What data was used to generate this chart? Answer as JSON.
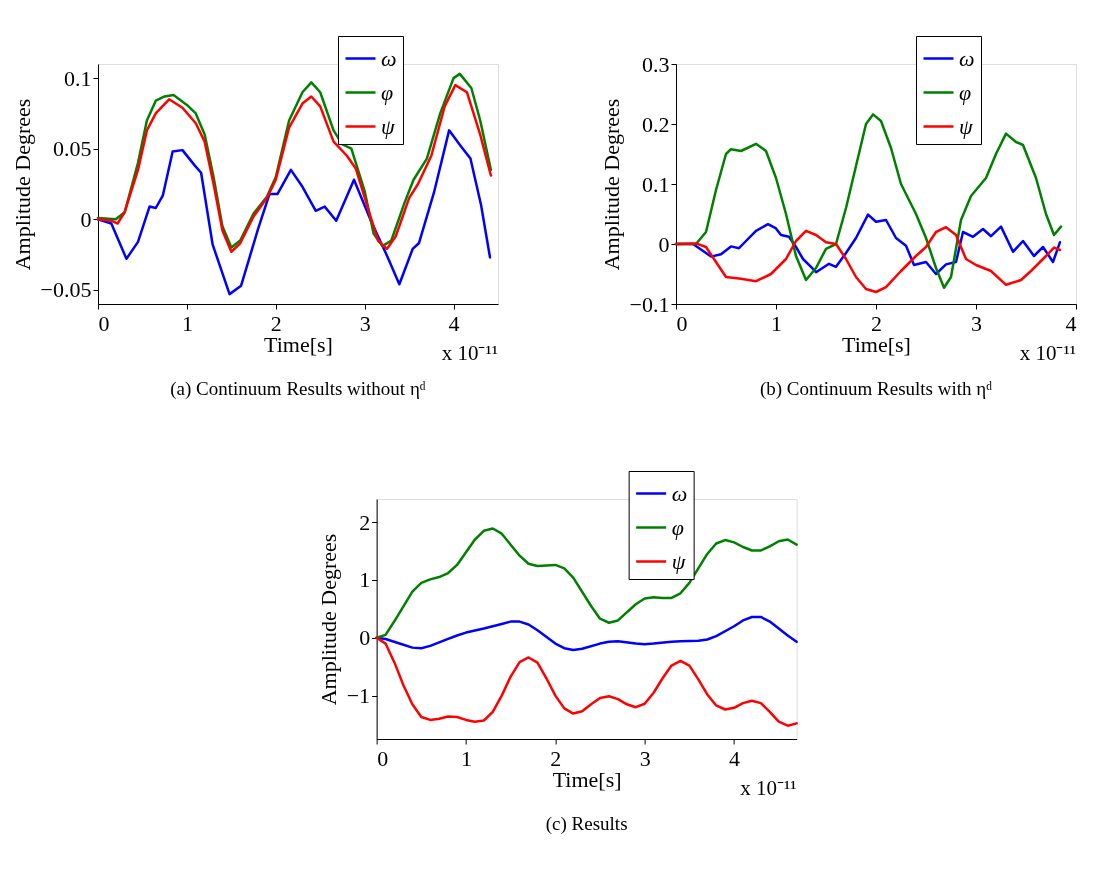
{
  "chart_data": [
    {
      "type": "line",
      "xlabel": "Time[s]",
      "ylabel": "Amplitude Degrees",
      "xlim": [
        0,
        4.5
      ],
      "xticks": [
        0,
        1,
        2,
        3,
        4
      ],
      "ylim": [
        -0.06,
        0.11
      ],
      "yticks": [
        -0.05,
        0,
        0.05,
        0.1
      ],
      "grid": false,
      "legend": "top",
      "line_style": "solid",
      "annotations": [
        "x 10⁻¹¹",
        "(a) Continuum Results without ηᵈ"
      ],
      "series": [
        {
          "name": "ω",
          "color": "#0000ff",
          "x": [
            0,
            0.15,
            0.32,
            0.45,
            0.58,
            0.65,
            0.73,
            0.84,
            0.95,
            1.09,
            1.16,
            1.29,
            1.48,
            1.61,
            1.8,
            1.93,
            2.02,
            2.17,
            2.3,
            2.45,
            2.55,
            2.68,
            2.88,
            3.07,
            3.26,
            3.39,
            3.54,
            3.61,
            3.78,
            3.95,
            4.08,
            4.19,
            4.31,
            4.41
          ],
          "values": [
            0,
            -0.003,
            -0.028,
            -0.016,
            0.009,
            0.008,
            0.017,
            0.048,
            0.049,
            0.038,
            0.033,
            -0.018,
            -0.053,
            -0.047,
            -0.007,
            0.018,
            0.018,
            0.035,
            0.023,
            0.006,
            0.009,
            -0.001,
            0.028,
            -0.001,
            -0.027,
            -0.046,
            -0.021,
            -0.017,
            0.019,
            0.063,
            0.052,
            0.043,
            0.01,
            -0.027
          ]
        },
        {
          "name": "φ",
          "color": "#008000",
          "x": [
            0,
            0.2,
            0.3,
            0.45,
            0.55,
            0.65,
            0.75,
            0.85,
            1.0,
            1.1,
            1.2,
            1.3,
            1.4,
            1.5,
            1.6,
            1.75,
            1.9,
            2.0,
            2.15,
            2.3,
            2.4,
            2.5,
            2.65,
            2.75,
            2.85,
            3.0,
            3.1,
            3.2,
            3.3,
            3.45,
            3.55,
            3.7,
            3.85,
            4.0,
            4.07,
            4.2,
            4.3,
            4.42
          ],
          "values": [
            0.001,
            0,
            0.005,
            0.04,
            0.07,
            0.084,
            0.087,
            0.088,
            0.081,
            0.075,
            0.06,
            0.03,
            -0.005,
            -0.02,
            -0.015,
            0.004,
            0.016,
            0.03,
            0.07,
            0.09,
            0.097,
            0.09,
            0.063,
            0.053,
            0.05,
            0.02,
            -0.01,
            -0.019,
            -0.015,
            0.012,
            0.028,
            0.043,
            0.075,
            0.1,
            0.103,
            0.093,
            0.07,
            0.035
          ]
        },
        {
          "name": "ψ",
          "color": "#ff0000",
          "x": [
            0,
            0.15,
            0.22,
            0.3,
            0.45,
            0.55,
            0.65,
            0.8,
            0.95,
            1.1,
            1.2,
            1.3,
            1.4,
            1.5,
            1.6,
            1.75,
            1.9,
            2.0,
            2.15,
            2.3,
            2.4,
            2.5,
            2.65,
            2.8,
            2.9,
            3.05,
            3.15,
            3.25,
            3.35,
            3.5,
            3.6,
            3.75,
            3.9,
            4.02,
            4.15,
            4.3,
            4.42
          ],
          "values": [
            0,
            -0.001,
            -0.003,
            0.005,
            0.035,
            0.063,
            0.075,
            0.085,
            0.079,
            0.068,
            0.055,
            0.025,
            -0.008,
            -0.023,
            -0.017,
            0.002,
            0.015,
            0.028,
            0.065,
            0.082,
            0.087,
            0.08,
            0.055,
            0.045,
            0.036,
            0.005,
            -0.015,
            -0.021,
            -0.012,
            0.015,
            0.025,
            0.045,
            0.08,
            0.095,
            0.09,
            0.06,
            0.031
          ]
        }
      ]
    },
    {
      "type": "line",
      "xlabel": "Time[s]",
      "ylabel": "Amplitude Degrees",
      "xlim": [
        0,
        4
      ],
      "xticks": [
        0,
        1,
        2,
        3,
        4
      ],
      "ylim": [
        -0.1,
        0.3
      ],
      "yticks": [
        -0.1,
        0,
        0.1,
        0.2,
        0.3
      ],
      "grid": false,
      "legend": "top",
      "line_style": "solid",
      "annotations": [
        "x 10⁻¹¹",
        "(b) Continuum Results with ηᵈ"
      ],
      "series": [
        {
          "name": "ω",
          "color": "#0000ff",
          "x": [
            0,
            0.17,
            0.3,
            0.35,
            0.45,
            0.55,
            0.63,
            0.7,
            0.8,
            0.92,
            1.0,
            1.05,
            1.13,
            1.2,
            1.27,
            1.35,
            1.4,
            1.53,
            1.6,
            1.7,
            1.8,
            1.92,
            2.0,
            2.1,
            2.2,
            2.3,
            2.38,
            2.5,
            2.6,
            2.7,
            2.8,
            2.87,
            2.97,
            3.07,
            3.15,
            3.25,
            3.37,
            3.47,
            3.58,
            3.67,
            3.77,
            3.84
          ],
          "values": [
            0,
            0,
            -0.015,
            -0.021,
            -0.017,
            -0.004,
            -0.007,
            0.005,
            0.022,
            0.033,
            0.026,
            0.015,
            0.012,
            -0.005,
            -0.025,
            -0.038,
            -0.047,
            -0.033,
            -0.038,
            -0.015,
            0.01,
            0.049,
            0.037,
            0.04,
            0.01,
            -0.003,
            -0.035,
            -0.03,
            -0.05,
            -0.034,
            -0.03,
            0.02,
            0.012,
            0.025,
            0.013,
            0.029,
            -0.013,
            0.005,
            -0.02,
            -0.005,
            -0.03,
            0.003
          ]
        },
        {
          "name": "φ",
          "color": "#008000",
          "x": [
            0,
            0.2,
            0.3,
            0.4,
            0.5,
            0.55,
            0.65,
            0.8,
            0.9,
            1.0,
            1.1,
            1.2,
            1.3,
            1.4,
            1.5,
            1.6,
            1.7,
            1.8,
            1.9,
            1.97,
            2.05,
            2.15,
            2.25,
            2.4,
            2.5,
            2.6,
            2.68,
            2.75,
            2.85,
            2.95,
            3.1,
            3.2,
            3.3,
            3.4,
            3.47,
            3.6,
            3.7,
            3.78,
            3.85
          ],
          "values": [
            0,
            0,
            0.02,
            0.09,
            0.15,
            0.158,
            0.155,
            0.167,
            0.155,
            0.11,
            0.05,
            -0.02,
            -0.06,
            -0.04,
            -0.008,
            0,
            0.06,
            0.13,
            0.2,
            0.216,
            0.205,
            0.16,
            0.1,
            0.05,
            0.01,
            -0.04,
            -0.073,
            -0.055,
            0.04,
            0.08,
            0.11,
            0.15,
            0.184,
            0.17,
            0.165,
            0.11,
            0.05,
            0.015,
            0.029
          ]
        },
        {
          "name": "ψ",
          "color": "#ff0000",
          "x": [
            0,
            0.2,
            0.3,
            0.4,
            0.5,
            0.65,
            0.8,
            0.95,
            1.1,
            1.2,
            1.3,
            1.4,
            1.5,
            1.6,
            1.7,
            1.8,
            1.9,
            2.0,
            2.1,
            2.25,
            2.4,
            2.5,
            2.6,
            2.7,
            2.8,
            2.9,
            3.0,
            3.15,
            3.3,
            3.45,
            3.55,
            3.7,
            3.78,
            3.84
          ],
          "values": [
            0,
            0.001,
            -0.005,
            -0.03,
            -0.055,
            -0.058,
            -0.062,
            -0.05,
            -0.025,
            0.005,
            0.022,
            0.015,
            0.003,
            0,
            -0.025,
            -0.055,
            -0.075,
            -0.08,
            -0.072,
            -0.045,
            -0.02,
            -0.005,
            0.02,
            0.028,
            0.015,
            -0.025,
            -0.035,
            -0.045,
            -0.068,
            -0.06,
            -0.045,
            -0.02,
            -0.006,
            -0.01
          ]
        }
      ]
    },
    {
      "type": "line",
      "xlabel": "Time[s]",
      "ylabel": "Amplitude Degrees",
      "xlim": [
        0,
        4.7
      ],
      "xticks": [
        0,
        1,
        2,
        3,
        4
      ],
      "ylim": [
        -1.75,
        2.4
      ],
      "yticks": [
        -1,
        0,
        1,
        2
      ],
      "grid": false,
      "legend": "top",
      "line_style": "solid",
      "annotations": [
        "x 10⁻¹¹",
        "(c) Results"
      ],
      "series": [
        {
          "name": "ω",
          "color": "#0000ff",
          "x": [
            0,
            0.1,
            0.3,
            0.4,
            0.5,
            0.6,
            0.8,
            0.9,
            1.0,
            1.2,
            1.4,
            1.5,
            1.6,
            1.7,
            1.8,
            2.0,
            2.1,
            2.2,
            2.3,
            2.5,
            2.6,
            2.7,
            2.9,
            3.0,
            3.1,
            3.3,
            3.4,
            3.6,
            3.7,
            3.8,
            4.0,
            4.1,
            4.2,
            4.3,
            4.4,
            4.6,
            4.7
          ],
          "values": [
            0,
            -0.02,
            -0.12,
            -0.17,
            -0.18,
            -0.14,
            -0.02,
            0.04,
            0.09,
            0.16,
            0.24,
            0.28,
            0.28,
            0.23,
            0.13,
            -0.1,
            -0.18,
            -0.21,
            -0.19,
            -0.1,
            -0.07,
            -0.06,
            -0.1,
            -0.11,
            -0.1,
            -0.07,
            -0.06,
            -0.05,
            -0.03,
            0.03,
            0.2,
            0.3,
            0.36,
            0.36,
            0.28,
            0.04,
            -0.07
          ]
        },
        {
          "name": "φ",
          "color": "#008000",
          "x": [
            0,
            0.1,
            0.2,
            0.4,
            0.5,
            0.6,
            0.7,
            0.8,
            0.9,
            1.1,
            1.2,
            1.3,
            1.4,
            1.6,
            1.7,
            1.8,
            2.0,
            2.1,
            2.2,
            2.4,
            2.5,
            2.6,
            2.7,
            2.9,
            3.0,
            3.1,
            3.2,
            3.3,
            3.4,
            3.5,
            3.7,
            3.8,
            3.9,
            4.0,
            4.1,
            4.2,
            4.3,
            4.4,
            4.5,
            4.6,
            4.7
          ],
          "values": [
            0,
            0.05,
            0.29,
            0.8,
            0.95,
            1.01,
            1.05,
            1.12,
            1.26,
            1.7,
            1.85,
            1.89,
            1.8,
            1.42,
            1.28,
            1.24,
            1.26,
            1.2,
            1.04,
            0.55,
            0.33,
            0.26,
            0.3,
            0.58,
            0.68,
            0.7,
            0.69,
            0.69,
            0.77,
            0.95,
            1.45,
            1.63,
            1.69,
            1.65,
            1.57,
            1.51,
            1.51,
            1.58,
            1.67,
            1.7,
            1.61
          ]
        },
        {
          "name": "ψ",
          "color": "#ff0000",
          "x": [
            0,
            0.1,
            0.2,
            0.3,
            0.4,
            0.5,
            0.6,
            0.7,
            0.8,
            0.9,
            1.0,
            1.1,
            1.2,
            1.3,
            1.4,
            1.5,
            1.6,
            1.7,
            1.8,
            1.9,
            2.0,
            2.1,
            2.2,
            2.3,
            2.4,
            2.5,
            2.6,
            2.7,
            2.8,
            2.9,
            3.0,
            3.1,
            3.2,
            3.3,
            3.4,
            3.5,
            3.6,
            3.7,
            3.8,
            3.9,
            4.0,
            4.1,
            4.2,
            4.3,
            4.4,
            4.5,
            4.6,
            4.7
          ],
          "values": [
            0,
            -0.1,
            -0.43,
            -0.82,
            -1.15,
            -1.37,
            -1.42,
            -1.4,
            -1.36,
            -1.37,
            -1.42,
            -1.45,
            -1.43,
            -1.28,
            -1.0,
            -0.67,
            -0.42,
            -0.34,
            -0.43,
            -0.7,
            -1.0,
            -1.22,
            -1.31,
            -1.27,
            -1.15,
            -1.04,
            -1.01,
            -1.06,
            -1.15,
            -1.2,
            -1.14,
            -0.95,
            -0.7,
            -0.48,
            -0.4,
            -0.48,
            -0.72,
            -0.98,
            -1.17,
            -1.24,
            -1.21,
            -1.13,
            -1.09,
            -1.13,
            -1.28,
            -1.45,
            -1.52,
            -1.48
          ]
        }
      ]
    }
  ]
}
